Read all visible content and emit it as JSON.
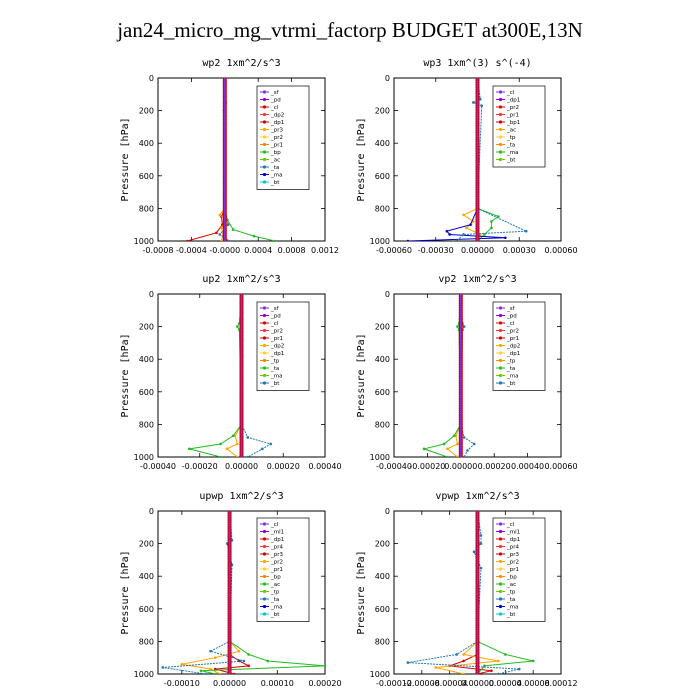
{
  "page": {
    "title": "jan24_micro_mg_vtrmi_factorp  BUDGET at300E,13N"
  },
  "chart_data": [
    {
      "type": "line",
      "title": "wp2  1xm^2/s^3",
      "ylabel": "Pressure [hPa]",
      "ylim": [
        1000,
        0
      ],
      "xlim": [
        -0.0008,
        0.0012
      ],
      "xticks": [
        "-0.0008",
        "-0.0004",
        "-0.0000",
        "0.0004",
        "0.0008",
        "0.0012"
      ],
      "xtick_values": [
        -0.0008,
        -0.0004,
        0.0,
        0.0004,
        0.0008,
        0.0012
      ],
      "yticks": [
        0,
        200,
        400,
        600,
        800,
        1000
      ],
      "legend_position": "top-right",
      "legend": [
        "_sf",
        "_pd",
        "_cl",
        "_dp2",
        "_dp1",
        "_pr3",
        "_pr2",
        "_pr1",
        "_bp",
        "_ac",
        "_ta",
        "_ma",
        "_bt"
      ],
      "series": [
        {
          "name": "_cl",
          "color": "#dd0000",
          "p": [
            0,
            300,
            600,
            800,
            850,
            900,
            950,
            1000
          ],
          "x": [
            0,
            0,
            0,
            0,
            -4e-05,
            -3e-05,
            -0.0001,
            -0.00045
          ]
        },
        {
          "name": "_dp1",
          "color": "#ffa500",
          "p": [
            0,
            800,
            840,
            870,
            920,
            960,
            1000
          ],
          "x": [
            0,
            0,
            -6e-05,
            2e-05,
            -4e-05,
            -2e-05,
            -4e-05
          ]
        },
        {
          "name": "_ac",
          "color": "#22bb22",
          "p": [
            0,
            800,
            870,
            930,
            970,
            1000
          ],
          "x": [
            0,
            0,
            3e-05,
            0.0001,
            0.00035,
            0.0006
          ]
        },
        {
          "name": "_ta",
          "color": "#1f77b4",
          "p": [
            0,
            150,
            200,
            800,
            900,
            960,
            1000
          ],
          "x": [
            0,
            1e-05,
            -1e-05,
            0,
            4e-05,
            -6e-05,
            5e-05
          ]
        },
        {
          "name": "_bt",
          "color": "#00c8c8",
          "p": [
            0,
            1000
          ],
          "x": [
            0,
            0
          ]
        },
        {
          "name": "_pd",
          "color": "#8a2be2",
          "p": [
            0,
            1000
          ],
          "x": [
            0,
            0
          ]
        }
      ]
    },
    {
      "type": "line",
      "title": "wp3  1xm^(3) s^(-4)",
      "ylabel": "Pressure [hPa]",
      "ylim": [
        1000,
        0
      ],
      "xlim": [
        -0.0006,
        0.0006
      ],
      "xticks": [
        "-0.00060",
        "-0.00030",
        "0.00000",
        "0.00030",
        "0.00060"
      ],
      "xtick_values": [
        -0.0006,
        -0.0003,
        0.0,
        0.0003,
        0.0006
      ],
      "yticks": [
        0,
        200,
        400,
        600,
        800,
        1000
      ],
      "legend_position": "top-right",
      "legend": [
        "_cl",
        "_dp1",
        "_pr2",
        "_pr1",
        "_bp1",
        "_ac",
        "_tp",
        "_ta",
        "_ma",
        "_bt"
      ],
      "series": [
        {
          "name": "_cl",
          "color": "#dd0000",
          "p": [
            0,
            1000
          ],
          "x": [
            0,
            0
          ]
        },
        {
          "name": "_dp1",
          "color": "#ffa500",
          "p": [
            0,
            800,
            840,
            880,
            920,
            960,
            1000
          ],
          "x": [
            0,
            0,
            -0.0001,
            -3e-05,
            -8e-05,
            2e-05,
            0
          ]
        },
        {
          "name": "_ac",
          "color": "#22bb22",
          "p": [
            0,
            800,
            850,
            880,
            920,
            960,
            1000
          ],
          "x": [
            0,
            0,
            0.00015,
            0.0001,
            0.0001,
            5e-05,
            0
          ]
        },
        {
          "name": "_tp",
          "color": "#0000cc",
          "p": [
            0,
            800,
            900,
            940,
            960,
            980,
            1000
          ],
          "x": [
            0,
            0,
            -5e-05,
            -0.00022,
            -0.0002,
            0.0002,
            -0.0005
          ]
        },
        {
          "name": "_ta",
          "color": "#1f77b4",
          "p": [
            0,
            130,
            150,
            170,
            800,
            940,
            960,
            1000
          ],
          "x": [
            0,
            2e-05,
            -3e-05,
            3e-05,
            0,
            0.00035,
            -0.0001,
            -0.00015
          ]
        },
        {
          "name": "_bt",
          "color": "#00c8c8",
          "p": [
            0,
            1000
          ],
          "x": [
            0,
            0
          ]
        }
      ]
    },
    {
      "type": "line",
      "title": "up2  1xm^2/s^3",
      "ylabel": "Pressure [hPa]",
      "ylim": [
        1000,
        0
      ],
      "xlim": [
        -0.0004,
        0.0004
      ],
      "xticks": [
        "-0.00040",
        "-0.00020",
        "0.00000",
        "0.00020",
        "0.00040"
      ],
      "xtick_values": [
        -0.0004,
        -0.0002,
        0.0,
        0.0002,
        0.0004
      ],
      "yticks": [
        0,
        200,
        400,
        600,
        800,
        1000
      ],
      "legend_position": "top-right",
      "legend": [
        "_sf",
        "_pd",
        "_cl",
        "_pr2",
        "_pr1",
        "_dp2",
        "_dp1",
        "_tp",
        "_ta",
        "_ma",
        "_bt"
      ],
      "series": [
        {
          "name": "_cl",
          "color": "#dd0000",
          "p": [
            0,
            1000
          ],
          "x": [
            0,
            0
          ]
        },
        {
          "name": "_pr2",
          "color": "#ffa500",
          "p": [
            0,
            800,
            870,
            920,
            950,
            1000
          ],
          "x": [
            0,
            0,
            -3e-05,
            -2e-05,
            -7e-05,
            -2e-05
          ]
        },
        {
          "name": "_dp1",
          "color": "#22bb22",
          "p": [
            0,
            180,
            200,
            220,
            800,
            870,
            920,
            950,
            1000
          ],
          "x": [
            0,
            -1e-05,
            -2e-05,
            -1e-05,
            0,
            -4e-05,
            -0.0001,
            -0.00025,
            -0.0001
          ]
        },
        {
          "name": "_ta",
          "color": "#1f77b4",
          "p": [
            0,
            800,
            880,
            920,
            950,
            1000
          ],
          "x": [
            0,
            0,
            3e-05,
            0.00014,
            0.0001,
            3e-05
          ]
        },
        {
          "name": "_bt",
          "color": "#00c8c8",
          "p": [
            0,
            1000
          ],
          "x": [
            0,
            0
          ]
        }
      ]
    },
    {
      "type": "line",
      "title": "vp2  1xm^2/s^3",
      "ylabel": "Pressure [hPa]",
      "ylim": [
        1000,
        0
      ],
      "xlim": [
        -0.0004,
        0.0006
      ],
      "xticks": [
        "-0.00040",
        "-0.00020",
        "0.00000",
        "0.00020",
        "0.00040",
        "0.00060"
      ],
      "xtick_values": [
        -0.0004,
        -0.0002,
        0.0,
        0.0002,
        0.0004,
        0.0006
      ],
      "yticks": [
        0,
        200,
        400,
        600,
        800,
        1000
      ],
      "legend_position": "top-right",
      "legend": [
        "_sf",
        "_pd",
        "_cl",
        "_pr2",
        "_pr1",
        "_dp2",
        "_dp1",
        "_tp",
        "_ta",
        "_ma",
        "_bt"
      ],
      "series": [
        {
          "name": "_cl",
          "color": "#dd0000",
          "p": [
            0,
            1000
          ],
          "x": [
            0,
            0
          ]
        },
        {
          "name": "_pr2",
          "color": "#ffa500",
          "p": [
            0,
            800,
            870,
            920,
            950,
            1000
          ],
          "x": [
            0,
            0,
            -3e-05,
            -2e-05,
            -8e-05,
            -2e-05
          ]
        },
        {
          "name": "_dp1",
          "color": "#22bb22",
          "p": [
            0,
            180,
            200,
            220,
            800,
            870,
            920,
            950,
            1000
          ],
          "x": [
            0,
            -1e-05,
            -2e-05,
            -1e-05,
            0,
            -4e-05,
            -0.0001,
            -0.00022,
            -8e-05
          ]
        },
        {
          "name": "_ta",
          "color": "#1f77b4",
          "p": [
            0,
            180,
            200,
            220,
            800,
            880,
            920,
            960,
            1000
          ],
          "x": [
            0,
            1e-05,
            2e-05,
            1e-05,
            0,
            2e-05,
            8e-05,
            4e-05,
            2e-05
          ]
        },
        {
          "name": "_bt",
          "color": "#00c8c8",
          "p": [
            0,
            1000
          ],
          "x": [
            0,
            0
          ]
        }
      ]
    },
    {
      "type": "line",
      "title": "upwp  1xm^2/s^3",
      "ylabel": "Pressure [hPa]",
      "ylim": [
        1000,
        0
      ],
      "xlim": [
        -0.00015,
        0.0002
      ],
      "xticks": [
        "-0.00010",
        "0.00000",
        "0.00010",
        "0.00020"
      ],
      "xtick_values": [
        -0.0001,
        0.0,
        0.0001,
        0.0002
      ],
      "yticks": [
        0,
        200,
        400,
        600,
        800,
        1000
      ],
      "legend_position": "top-right",
      "legend": [
        "_cl",
        "_ml1",
        "_dp1",
        "_pr4",
        "_pr3",
        "_pr2",
        "_pr1",
        "_bp",
        "_ac",
        "_tp",
        "_ta",
        "_ma",
        "_bt"
      ],
      "series": [
        {
          "name": "_cl",
          "color": "#dd0000",
          "p": [
            0,
            880,
            920,
            950,
            970,
            1000
          ],
          "x": [
            0,
            0,
            2e-05,
            4e-05,
            -3e-05,
            1e-05
          ]
        },
        {
          "name": "_pr2",
          "color": "#ffa500",
          "p": [
            0,
            800,
            860,
            900,
            940,
            970,
            1000
          ],
          "x": [
            0,
            0,
            2e-05,
            -3e-05,
            -0.0001,
            -4e-05,
            -2e-05
          ]
        },
        {
          "name": "_ac",
          "color": "#22bb22",
          "p": [
            0,
            800,
            880,
            920,
            950,
            980,
            1000
          ],
          "x": [
            0,
            0,
            4e-05,
            8e-05,
            0.0002,
            -6e-05,
            -3e-05
          ]
        },
        {
          "name": "_ta",
          "color": "#1f77b4",
          "p": [
            0,
            180,
            200,
            330,
            800,
            860,
            920,
            960,
            1000
          ],
          "x": [
            0,
            5e-06,
            -5e-06,
            5e-06,
            0,
            -4e-05,
            3e-05,
            -0.00014,
            -5e-05
          ]
        },
        {
          "name": "_ml1",
          "color": "#8a2be2",
          "p": [
            0,
            1000
          ],
          "x": [
            0,
            0
          ]
        },
        {
          "name": "_bt",
          "color": "#00c8c8",
          "p": [
            0,
            1000
          ],
          "x": [
            0,
            0
          ]
        }
      ]
    },
    {
      "type": "line",
      "title": "vpwp  1xm^2/s^3",
      "ylabel": "Pressure [hPa]",
      "ylim": [
        1000,
        0
      ],
      "xlim": [
        -0.00012,
        0.00012
      ],
      "xticks": [
        "-0.00012",
        "-0.00008",
        "-0.00004",
        "0.00000",
        "0.00004",
        "0.00008",
        "0.00012"
      ],
      "xtick_values": [
        -0.00012,
        -8e-05,
        -4e-05,
        0.0,
        4e-05,
        8e-05,
        0.00012
      ],
      "yticks": [
        0,
        200,
        400,
        600,
        800,
        1000
      ],
      "legend_position": "top-right",
      "legend": [
        "_cl",
        "_ml1",
        "_dp1",
        "_pr4",
        "_pr3",
        "_pr2",
        "_pr1",
        "_bp",
        "_ac",
        "_tp",
        "_ta",
        "_ma",
        "_bt"
      ],
      "series": [
        {
          "name": "_cl",
          "color": "#dd0000",
          "p": [
            0,
            880,
            920,
            950,
            980,
            1000
          ],
          "x": [
            0,
            0,
            -2e-05,
            -4e-05,
            2e-05,
            0
          ]
        },
        {
          "name": "_pr2",
          "color": "#ffa500",
          "p": [
            0,
            180,
            200,
            220,
            800,
            880,
            920,
            960,
            1000
          ],
          "x": [
            0,
            0,
            5e-06,
            0,
            0,
            -2e-05,
            3e-05,
            -6e-05,
            -2e-05
          ]
        },
        {
          "name": "_ac",
          "color": "#22bb22",
          "p": [
            0,
            800,
            880,
            920,
            950,
            1000
          ],
          "x": [
            0,
            0,
            4e-05,
            8e-05,
            1e-05,
            0
          ]
        },
        {
          "name": "_ta",
          "color": "#1f77b4",
          "p": [
            0,
            150,
            200,
            250,
            350,
            800,
            880,
            930,
            970,
            1000
          ],
          "x": [
            0,
            5e-06,
            5e-06,
            -5e-06,
            5e-06,
            0,
            -3e-05,
            -0.0001,
            6e-05,
            3e-05
          ]
        },
        {
          "name": "_ml1",
          "color": "#8a2be2",
          "p": [
            0,
            1000
          ],
          "x": [
            0,
            0
          ]
        },
        {
          "name": "_bt",
          "color": "#00c8c8",
          "p": [
            0,
            1000
          ],
          "x": [
            0,
            0
          ]
        }
      ]
    }
  ]
}
